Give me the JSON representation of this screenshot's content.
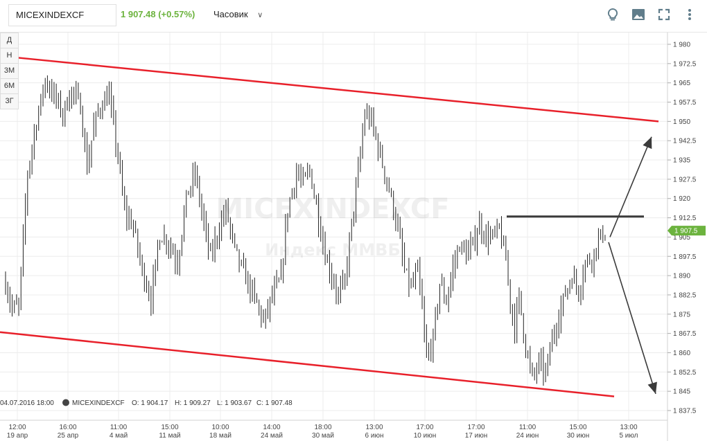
{
  "header": {
    "symbol": "MICEXINDEXCF",
    "quote": "1 907.48 (+0.57%)",
    "interval_label": "Часовик",
    "tools": [
      "lightbulb-icon",
      "image-icon",
      "fullscreen-icon",
      "more-vert-icon"
    ]
  },
  "period_buttons": [
    "Д",
    "Н",
    "3М",
    "6М",
    "3Г"
  ],
  "watermark": {
    "title": "MICEXINDEXCF",
    "subtitle": "Индекс ММВБ"
  },
  "legend": {
    "datetime": "04.07.2016 18:00",
    "name": "MICEXINDEXCF",
    "open": "O: 1 904.17",
    "high": "H: 1 909.27",
    "low": "L: 1 903.67",
    "close": "C: 1 907.48"
  },
  "colors": {
    "up": "#6cb33e",
    "channel": "#e8202a",
    "level": "#3a3a3a",
    "candle": "#222222"
  },
  "chart_data": {
    "type": "candlestick",
    "y_axis": {
      "min": 1837.5,
      "max": 1980,
      "step": 7.5,
      "ticks": [
        "1 980",
        "1 972.5",
        "1 965",
        "1 957.5",
        "1 950",
        "1 942.5",
        "1 935",
        "1 927.5",
        "1 920",
        "1 912.5",
        "1 905",
        "1 897.5",
        "1 890",
        "1 882.5",
        "1 875",
        "1 867.5",
        "1 860",
        "1 852.5",
        "1 845",
        "1 837.5"
      ]
    },
    "x_ticks": [
      {
        "time": "12:00",
        "date": "19 апр"
      },
      {
        "time": "16:00",
        "date": "25 апр"
      },
      {
        "time": "11:00",
        "date": "4 май"
      },
      {
        "time": "15:00",
        "date": "11 май"
      },
      {
        "time": "10:00",
        "date": "18 май"
      },
      {
        "time": "14:00",
        "date": "24 май"
      },
      {
        "time": "18:00",
        "date": "30 май"
      },
      {
        "time": "13:00",
        "date": "6 июн"
      },
      {
        "time": "17:00",
        "date": "10 июн"
      },
      {
        "time": "17:00",
        "date": "17 июн"
      },
      {
        "time": "11:00",
        "date": "24 июн"
      },
      {
        "time": "15:00",
        "date": "30 июн"
      },
      {
        "time": "13:00",
        "date": "5 июл"
      }
    ],
    "last_price_label": "1 907.5",
    "last_price": 1907.5,
    "anchors": [
      [
        0,
        1887
      ],
      [
        3,
        1877
      ],
      [
        6,
        1878
      ],
      [
        10,
        1930
      ],
      [
        14,
        1950
      ],
      [
        18,
        1966
      ],
      [
        22,
        1960
      ],
      [
        26,
        1953
      ],
      [
        30,
        1962
      ],
      [
        34,
        1956
      ],
      [
        37,
        1932
      ],
      [
        40,
        1948
      ],
      [
        43,
        1956
      ],
      [
        47,
        1960
      ],
      [
        51,
        1936
      ],
      [
        54,
        1915
      ],
      [
        58,
        1909
      ],
      [
        62,
        1892
      ],
      [
        66,
        1881
      ],
      [
        70,
        1906
      ],
      [
        74,
        1903
      ],
      [
        78,
        1895
      ],
      [
        82,
        1920
      ],
      [
        86,
        1930
      ],
      [
        90,
        1910
      ],
      [
        93,
        1897
      ],
      [
        96,
        1906
      ],
      [
        100,
        1916
      ],
      [
        104,
        1900
      ],
      [
        107,
        1893
      ],
      [
        111,
        1885
      ],
      [
        114,
        1879
      ],
      [
        117,
        1872
      ],
      [
        121,
        1882
      ],
      [
        125,
        1889
      ],
      [
        128,
        1916
      ],
      [
        132,
        1930
      ],
      [
        135,
        1926
      ],
      [
        138,
        1931
      ],
      [
        141,
        1917
      ],
      [
        145,
        1898
      ],
      [
        148,
        1890
      ],
      [
        151,
        1882
      ],
      [
        154,
        1888
      ],
      [
        157,
        1910
      ],
      [
        160,
        1930
      ],
      [
        163,
        1953
      ],
      [
        166,
        1950
      ],
      [
        169,
        1940
      ],
      [
        172,
        1930
      ],
      [
        175,
        1920
      ],
      [
        178,
        1908
      ],
      [
        181,
        1892
      ],
      [
        184,
        1885
      ],
      [
        187,
        1892
      ],
      [
        189,
        1876
      ],
      [
        191,
        1858
      ],
      [
        194,
        1865
      ],
      [
        197,
        1887
      ],
      [
        200,
        1880
      ],
      [
        203,
        1893
      ],
      [
        206,
        1902
      ],
      [
        209,
        1898
      ],
      [
        212,
        1902
      ],
      [
        215,
        1910
      ],
      [
        218,
        1905
      ],
      [
        221,
        1905
      ],
      [
        224,
        1908
      ],
      [
        227,
        1896
      ],
      [
        229,
        1880
      ],
      [
        231,
        1870
      ],
      [
        233,
        1882
      ],
      [
        236,
        1862
      ],
      [
        239,
        1850
      ],
      [
        242,
        1856
      ],
      [
        245,
        1852
      ],
      [
        248,
        1865
      ],
      [
        251,
        1875
      ],
      [
        254,
        1883
      ],
      [
        257,
        1890
      ],
      [
        260,
        1884
      ],
      [
        263,
        1895
      ],
      [
        266,
        1897
      ],
      [
        269,
        1904
      ],
      [
        272,
        1907.5
      ]
    ],
    "candle_count": 273,
    "channel_upper": [
      {
        "i": 3,
        "y": 1975
      },
      {
        "i": "end",
        "y": 1950
      }
    ],
    "channel_lower": [
      {
        "i": 0,
        "y": 1868
      },
      {
        "i": 266,
        "y": 1843
      }
    ],
    "resistance_level": {
      "y": 1913,
      "from_i": 222,
      "to_i": "end"
    },
    "arrows": [
      {
        "from": {
          "i": 272,
          "y": 1905
        },
        "to": {
          "i": "end",
          "y": 1945
        }
      },
      {
        "from": {
          "i": 272,
          "y": 1903
        },
        "to": {
          "i": "end",
          "y": 1843
        }
      }
    ]
  }
}
